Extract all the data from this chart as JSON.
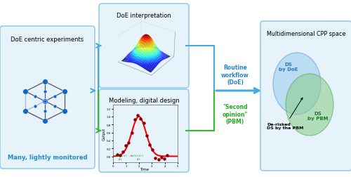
{
  "bg_color": "#ffffff",
  "box_bg": "#e6f3fb",
  "box_edge": "#99cce8",
  "blue_color": "#2288cc",
  "text_blue": "#2288cc",
  "text_green": "#22aa22",
  "arrow_blue": "#44aadd",
  "arrow_green": "#33bb33",
  "cube_edge_front": "#555566",
  "cube_edge_back": "#aabbcc",
  "dot_color": "#1166cc",
  "labels": {
    "doe_experiments": "DoE centric experiments",
    "many_lightly": "Many, lightly monitored",
    "doe_interpretation": "DoE interpretation",
    "modeling": "Modeling, digital design",
    "routine": "Routine\nworkflow\n(DoE)",
    "second": "\"Second\nopinion\"\n(PBM)",
    "multidim": "Multidimensional CPP space",
    "ds_doe": "DS\nby DoE",
    "ds_pbm": "DS\nby PBM",
    "de_risked": "De-risked\nDS by the PBM"
  }
}
